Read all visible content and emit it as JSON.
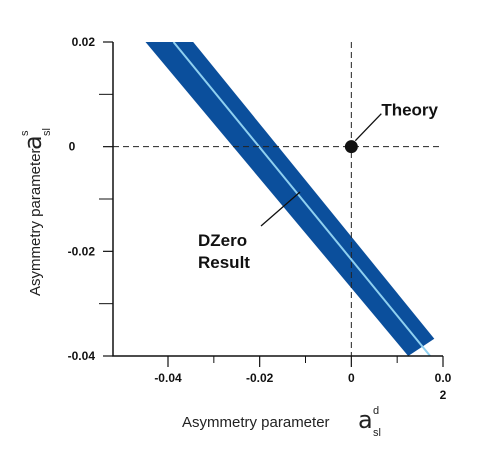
{
  "chart_data": {
    "type": "area",
    "xlabel": "Asymmetry parameter",
    "ylabel": "Asymmetry parameter",
    "x_symbol": {
      "base": "a",
      "sup": "d",
      "sub": "sl"
    },
    "y_symbol": {
      "base": "a",
      "sup": "s",
      "sub": "sl"
    },
    "xlim": [
      -0.052,
      0.02
    ],
    "ylim": [
      -0.04,
      0.02
    ],
    "x_ticks": [
      {
        "value": -0.04,
        "label": "-0.04",
        "lines": [
          "-0.04"
        ]
      },
      {
        "value": -0.02,
        "label": "-0.02",
        "lines": [
          "-0.02"
        ]
      },
      {
        "value": 0,
        "label": "0",
        "lines": [
          "0"
        ]
      },
      {
        "value": 0.02,
        "label": "0.02",
        "lines": [
          "0.0",
          "2"
        ]
      }
    ],
    "x_minor_ticks": [
      -0.03,
      -0.01,
      0.01
    ],
    "y_ticks": [
      {
        "value": 0.02,
        "label": "0.02"
      },
      {
        "value": 0,
        "label": "0"
      },
      {
        "value": -0.02,
        "label": "-0.02"
      },
      {
        "value": -0.04,
        "label": "-0.04"
      }
    ],
    "y_minor_ticks": [
      0.01,
      -0.01,
      -0.03
    ],
    "grid": false,
    "reference_lines": {
      "x": 0,
      "y": 0,
      "style": "dashed"
    },
    "series": [
      {
        "kind": "band",
        "color": "#0b4f9c",
        "center_color": "#8fd0f0",
        "center_line": [
          [
            -0.0388,
            0.02
          ],
          [
            0.0172,
            -0.04
          ]
        ],
        "band_lower": [
          [
            -0.0345,
            0.02
          ],
          [
            0.0181,
            -0.0367
          ]
        ],
        "band_upper": [
          [
            -0.0449,
            0.02
          ],
          [
            0.0124,
            -0.04
          ]
        ],
        "label": [
          "DZero",
          "Result"
        ]
      },
      {
        "kind": "point",
        "x": 0,
        "y": 0,
        "color": "#111111",
        "label": "Theory"
      }
    ],
    "colors": {
      "band": "#0b4f9c",
      "center": "#8fd0f0",
      "axes": "#111111"
    }
  }
}
